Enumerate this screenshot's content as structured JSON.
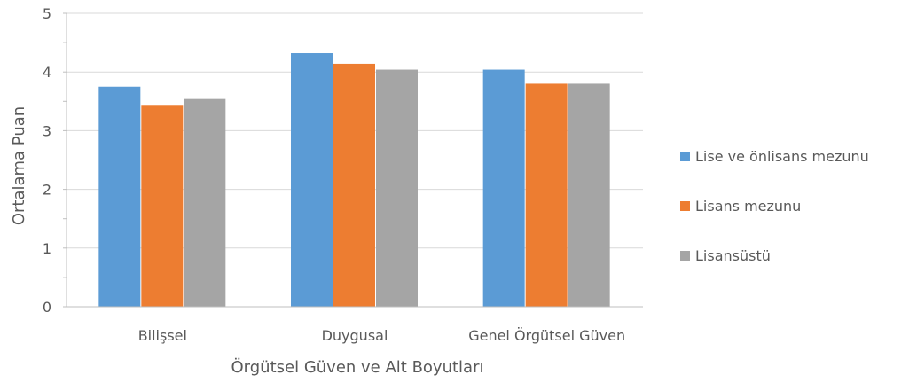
{
  "chart_data": {
    "type": "bar",
    "title": "",
    "xlabel": "Örgütsel Güven ve Alt Boyutları",
    "ylabel": "Ortalama Puan",
    "ylim": [
      0,
      5
    ],
    "yticks": [
      0,
      1,
      2,
      3,
      4,
      5
    ],
    "grid": true,
    "legend_position": "right",
    "categories": [
      "Bilişsel",
      "Duygusal",
      "Genel Örgütsel Güven"
    ],
    "series": [
      {
        "name": "Lise ve önlisans mezunu",
        "color": "#5B9BD5",
        "values": [
          3.75,
          4.32,
          4.04
        ]
      },
      {
        "name": "Lisans mezunu",
        "color": "#ED7D31",
        "values": [
          3.44,
          4.14,
          3.8
        ]
      },
      {
        "name": "Lisansüstü",
        "color": "#A5A5A5",
        "values": [
          3.54,
          4.04,
          3.8
        ]
      }
    ]
  }
}
